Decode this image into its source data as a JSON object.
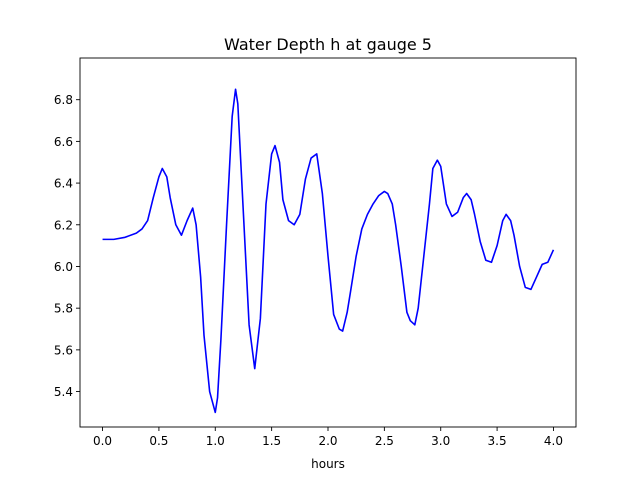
{
  "chart_data": {
    "type": "line",
    "title": "Water Depth h at gauge 5",
    "xlabel": "hours",
    "ylabel": "",
    "xlim": [
      -0.2,
      4.2
    ],
    "ylim": [
      5.23,
      7.0
    ],
    "xticks": [
      0.0,
      0.5,
      1.0,
      1.5,
      2.0,
      2.5,
      3.0,
      3.5,
      4.0
    ],
    "xtick_labels": [
      "0.0",
      "0.5",
      "1.0",
      "1.5",
      "2.0",
      "2.5",
      "3.0",
      "3.5",
      "4.0"
    ],
    "yticks": [
      5.4,
      5.6,
      5.8,
      6.0,
      6.2,
      6.4,
      6.6,
      6.8
    ],
    "ytick_labels": [
      "5.4",
      "5.6",
      "5.8",
      "6.0",
      "6.2",
      "6.4",
      "6.6",
      "6.8"
    ],
    "grid": false,
    "series": [
      {
        "color": "#0000ff",
        "x": [
          0.0,
          0.1,
          0.2,
          0.3,
          0.35,
          0.4,
          0.45,
          0.5,
          0.53,
          0.57,
          0.6,
          0.65,
          0.7,
          0.75,
          0.8,
          0.83,
          0.87,
          0.9,
          0.95,
          1.0,
          1.02,
          1.05,
          1.1,
          1.15,
          1.18,
          1.2,
          1.25,
          1.3,
          1.35,
          1.4,
          1.45,
          1.5,
          1.53,
          1.57,
          1.6,
          1.65,
          1.7,
          1.75,
          1.8,
          1.85,
          1.9,
          1.95,
          2.0,
          2.05,
          2.1,
          2.13,
          2.17,
          2.2,
          2.25,
          2.3,
          2.35,
          2.4,
          2.45,
          2.5,
          2.53,
          2.57,
          2.6,
          2.65,
          2.7,
          2.73,
          2.77,
          2.8,
          2.85,
          2.9,
          2.93,
          2.97,
          3.0,
          3.05,
          3.1,
          3.15,
          3.2,
          3.23,
          3.27,
          3.3,
          3.35,
          3.4,
          3.45,
          3.5,
          3.55,
          3.58,
          3.62,
          3.65,
          3.7,
          3.75,
          3.8,
          3.85,
          3.9,
          3.95,
          4.0
        ],
        "y": [
          6.13,
          6.13,
          6.14,
          6.16,
          6.18,
          6.22,
          6.33,
          6.43,
          6.47,
          6.43,
          6.33,
          6.2,
          6.15,
          6.22,
          6.28,
          6.2,
          5.95,
          5.67,
          5.4,
          5.3,
          5.37,
          5.65,
          6.2,
          6.72,
          6.85,
          6.78,
          6.25,
          5.72,
          5.51,
          5.75,
          6.3,
          6.54,
          6.58,
          6.5,
          6.32,
          6.22,
          6.2,
          6.25,
          6.42,
          6.52,
          6.54,
          6.35,
          6.05,
          5.77,
          5.7,
          5.69,
          5.78,
          5.88,
          6.05,
          6.18,
          6.25,
          6.3,
          6.34,
          6.36,
          6.35,
          6.3,
          6.2,
          6.0,
          5.78,
          5.74,
          5.72,
          5.8,
          6.05,
          6.3,
          6.47,
          6.51,
          6.48,
          6.3,
          6.24,
          6.26,
          6.33,
          6.35,
          6.32,
          6.25,
          6.12,
          6.03,
          6.02,
          6.1,
          6.22,
          6.25,
          6.22,
          6.15,
          6.0,
          5.9,
          5.89,
          5.95,
          6.01,
          6.02,
          6.08
        ]
      }
    ]
  }
}
